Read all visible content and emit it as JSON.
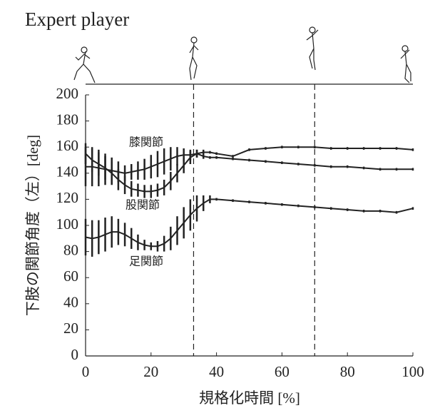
{
  "chart_data": {
    "type": "line",
    "title": "Expert player",
    "xlabel": "規格化時間 [%]",
    "ylabel": "下肢の関節角度（左）[deg]",
    "annotations": [
      "膝関節",
      "股関節",
      "足関節"
    ],
    "x": [
      0,
      2,
      4,
      6,
      8,
      10,
      12,
      14,
      16,
      18,
      20,
      22,
      24,
      26,
      28,
      30,
      32,
      34,
      36,
      38,
      40,
      45,
      50,
      55,
      60,
      65,
      70,
      75,
      80,
      85,
      90,
      95,
      100
    ],
    "series": [
      {
        "name": "股関節",
        "color": "#222222",
        "values": [
          155,
          150,
          147,
          144,
          140,
          135,
          131,
          128,
          127,
          126,
          126,
          127,
          129,
          134,
          140,
          146,
          152,
          155,
          153,
          152,
          152,
          151,
          150,
          149,
          148,
          147,
          146,
          145,
          145,
          144,
          143,
          143,
          143
        ],
        "errors": [
          8,
          9,
          9,
          9,
          9,
          8,
          7,
          6,
          5,
          5,
          5,
          5,
          6,
          7,
          7,
          6,
          5,
          3,
          2,
          1,
          1,
          1,
          1,
          1,
          1,
          1,
          1,
          1,
          1,
          1,
          1,
          1,
          1
        ]
      },
      {
        "name": "膝関節",
        "color": "#222222",
        "values": [
          145,
          145,
          144,
          143,
          142,
          141,
          140,
          141,
          142,
          143,
          145,
          147,
          149,
          151,
          153,
          154,
          154,
          155,
          156,
          156,
          155,
          153,
          158,
          159,
          160,
          160,
          160,
          159,
          159,
          159,
          159,
          159,
          158
        ],
        "errors": [
          15,
          15,
          14,
          12,
          10,
          8,
          6,
          6,
          7,
          8,
          9,
          10,
          10,
          9,
          7,
          5,
          4,
          3,
          2,
          1,
          1,
          1,
          1,
          1,
          1,
          1,
          1,
          1,
          1,
          1,
          1,
          1,
          1
        ]
      },
      {
        "name": "足関節",
        "color": "#222222",
        "values": [
          91,
          90,
          91,
          93,
          95,
          95,
          93,
          90,
          87,
          85,
          84,
          84,
          86,
          90,
          96,
          102,
          108,
          113,
          117,
          120,
          120,
          119,
          118,
          117,
          116,
          115,
          114,
          113,
          112,
          111,
          111,
          110,
          113
        ],
        "errors": [
          14,
          14,
          13,
          13,
          12,
          10,
          9,
          8,
          6,
          4,
          3,
          4,
          6,
          9,
          11,
          12,
          12,
          10,
          6,
          3,
          1,
          1,
          1,
          1,
          1,
          1,
          1,
          1,
          1,
          1,
          1,
          1,
          1
        ]
      }
    ],
    "vlines": [
      33,
      70
    ],
    "xlim": [
      0,
      100
    ],
    "xticks": [
      0,
      20,
      40,
      60,
      80,
      100
    ],
    "ylim": [
      0,
      200
    ],
    "yticks": [
      0,
      20,
      40,
      60,
      80,
      100,
      120,
      140,
      160,
      180,
      200
    ],
    "grid": false
  }
}
